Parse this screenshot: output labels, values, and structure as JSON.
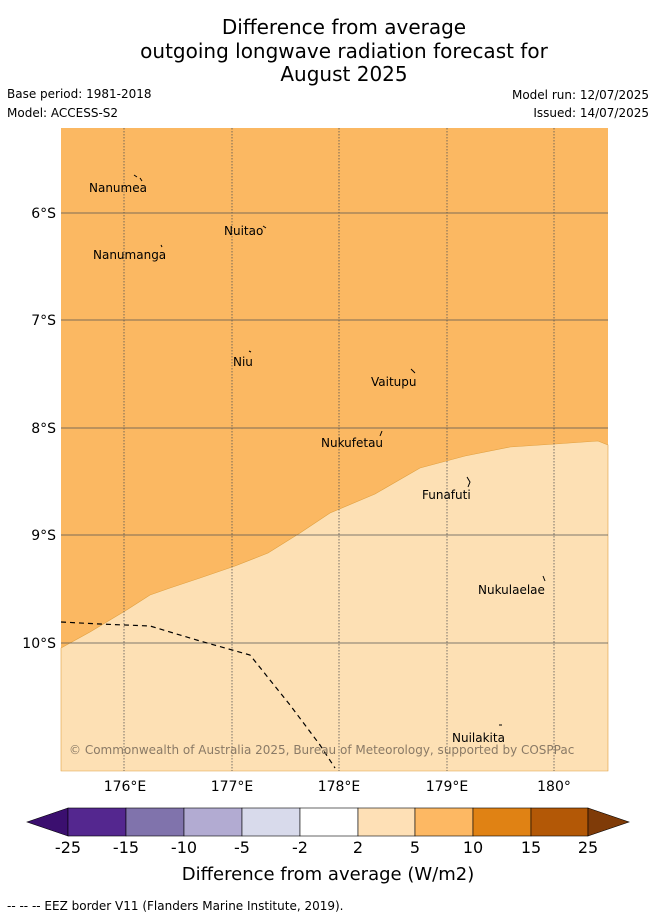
{
  "header": {
    "title_lines": [
      "Difference from average",
      "outgoing longwave radiation forecast for",
      "August 2025"
    ],
    "base_period": "Base period: 1981-2018",
    "model": "Model: ACCESS-S2",
    "model_run": "Model run: 12/07/2025",
    "issued": "Issued: 14/07/2025"
  },
  "map": {
    "lat_labels": [
      "6°S",
      "7°S",
      "8°S",
      "9°S",
      "10°S"
    ],
    "lon_labels": [
      "176°E",
      "177°E",
      "178°E",
      "179°E",
      "180°"
    ],
    "places": [
      "Nanumea",
      "Nuitao",
      "Nanumanga",
      "Niu",
      "Vaitupu",
      "Nukufetau",
      "Funafuti",
      "Nukulaelae",
      "Nuilakita"
    ],
    "copyright": "© Commonwealth of Australia 2025, Bureau of Meteorology, supported by COSPPac",
    "colors": {
      "band_5_10": "#fbb862",
      "band_2_5": "#fde0b4",
      "grid": "#555555"
    }
  },
  "legend": {
    "tick_labels": [
      "-25",
      "-15",
      "-10",
      "-5",
      "-2",
      "2",
      "5",
      "10",
      "15",
      "25"
    ],
    "colors": [
      "#3b0f6f",
      "#54278f",
      "#8073ac",
      "#b2abd2",
      "#d8daeb",
      "#ffffff",
      "#fee0b6",
      "#fdb863",
      "#e08214",
      "#b35806",
      "#7f3b08"
    ],
    "label": "Difference from average (W/m2)"
  },
  "footer": {
    "eez_note": "-- -- -- EEZ border V11 (Flanders Marine Institute, 2019)."
  }
}
